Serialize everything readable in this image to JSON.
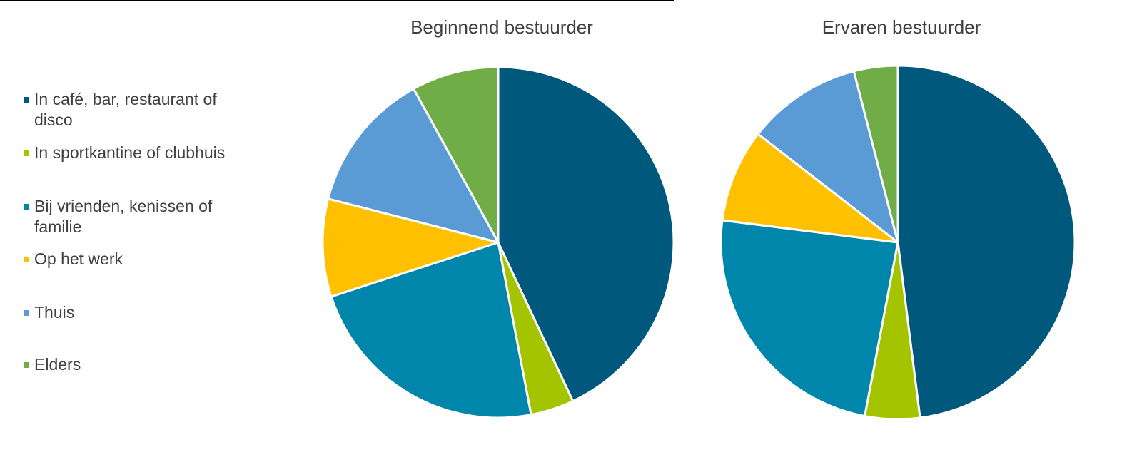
{
  "chart_data": [
    {
      "type": "pie",
      "title": "Beginnend bestuurder",
      "categories": [
        "In café, bar, restaurant of disco",
        "In sportkantine of clubhuis",
        "Bij vrienden, kenissen of familie",
        "Op het werk",
        "Thuis",
        "Elders"
      ],
      "colors": [
        "#00587c",
        "#a5c400",
        "#0086ab",
        "#ffc000",
        "#5b9bd5",
        "#70ad47"
      ],
      "values": [
        43,
        4,
        23,
        9,
        13,
        8
      ],
      "legend": "left"
    },
    {
      "type": "pie",
      "title": "Ervaren bestuurder",
      "categories": [
        "In café, bar, restaurant of disco",
        "In sportkantine of clubhuis",
        "Bij vrienden, kenissen of familie",
        "Op het werk",
        "Thuis",
        "Elders"
      ],
      "colors": [
        "#00587c",
        "#a5c400",
        "#0086ab",
        "#ffc000",
        "#5b9bd5",
        "#70ad47"
      ],
      "values": [
        48,
        5,
        24,
        8.5,
        10.5,
        4
      ]
    }
  ]
}
